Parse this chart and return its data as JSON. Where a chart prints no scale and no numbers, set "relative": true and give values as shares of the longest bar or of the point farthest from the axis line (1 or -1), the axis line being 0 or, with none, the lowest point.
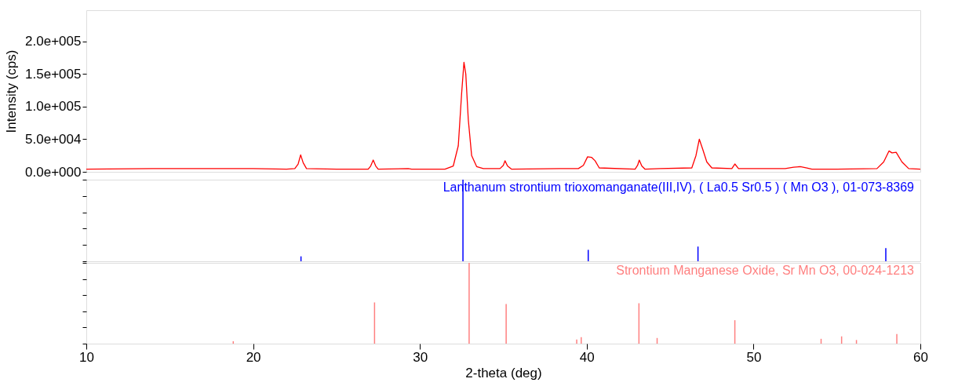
{
  "chart_data": [
    {
      "type": "line",
      "ylabel": "Intensity (cps)",
      "xlim": [
        10,
        60
      ],
      "ylim": [
        0,
        248000
      ],
      "tick_labels": "y",
      "yticks": [
        {
          "value": 0,
          "label": "0.0e+000"
        },
        {
          "value": 50000,
          "label": "5.0e+004"
        },
        {
          "value": 100000,
          "label": "1.0e+005"
        },
        {
          "value": 150000,
          "label": "1.5e+005"
        },
        {
          "value": 200000,
          "label": "2.0e+005"
        }
      ],
      "series": [
        {
          "color": "#ff0000",
          "x": [
            10,
            14,
            18,
            20,
            22,
            22.5,
            22.7,
            22.85,
            23.0,
            23.2,
            25,
            26.9,
            27.05,
            27.2,
            27.35,
            27.5,
            29.3,
            29.5,
            31.5,
            32.0,
            32.3,
            32.5,
            32.64,
            32.75,
            32.9,
            33.1,
            33.4,
            33.8,
            34.8,
            35.0,
            35.1,
            35.25,
            35.5,
            38.4,
            39.5,
            39.8,
            40.05,
            40.3,
            40.5,
            40.75,
            42.9,
            43.05,
            43.15,
            43.3,
            43.5,
            44.4,
            46.3,
            46.55,
            46.75,
            46.95,
            47.2,
            47.5,
            48.7,
            48.88,
            49.1,
            51.9,
            52.4,
            52.8,
            53.2,
            53.5,
            55,
            57.4,
            57.8,
            58.12,
            58.3,
            58.55,
            58.9,
            59.3,
            60
          ],
          "values": [
            4000,
            5000,
            5000,
            5000,
            4000,
            5000,
            12000,
            26000,
            14000,
            5000,
            4000,
            4000,
            9000,
            18000,
            9000,
            4000,
            5000,
            4000,
            4000,
            9000,
            40000,
            120000,
            168000,
            150000,
            80000,
            25000,
            8000,
            5000,
            5000,
            10000,
            17000,
            9000,
            4000,
            5000,
            5000,
            10000,
            23000,
            22000,
            17000,
            6000,
            4000,
            10000,
            18000,
            9000,
            4000,
            5000,
            6000,
            25000,
            50000,
            35000,
            15000,
            6000,
            5000,
            12000,
            5000,
            5000,
            7000,
            8000,
            6000,
            4000,
            4000,
            5000,
            15000,
            32000,
            29000,
            30000,
            15000,
            5000,
            4000
          ]
        }
      ]
    },
    {
      "type": "bar",
      "relative": true,
      "xlim": [
        10,
        60
      ],
      "tick_labels": false,
      "x": [
        22.87,
        32.58,
        40.09,
        46.67,
        57.93
      ],
      "series": [
        {
          "name": "Lanthanum strontium trioxomanganate(III,IV), ( La0.5 Sr0.5 ) ( Mn O3 ), 01-073-8369",
          "color": "#0000ff",
          "values": [
            0.06,
            1.0,
            0.14,
            0.18,
            0.16
          ]
        }
      ]
    },
    {
      "type": "bar",
      "relative": true,
      "xlim": [
        10,
        60
      ],
      "xticks": [
        10,
        20,
        30,
        40,
        50,
        60
      ],
      "xlabel": "2-theta (deg)",
      "tick_labels": "x",
      "x": [
        18.81,
        27.28,
        32.95,
        35.17,
        39.4,
        39.67,
        43.13,
        44.22,
        48.88,
        54.05,
        55.28,
        56.17,
        58.59
      ],
      "series": [
        {
          "name": "Strontium Manganese Oxide, Sr Mn O3, 00-024-1213",
          "color": "#ff8080",
          "values": [
            0.03,
            0.51,
            1.0,
            0.49,
            0.05,
            0.08,
            0.5,
            0.07,
            0.29,
            0.06,
            0.09,
            0.045,
            0.12
          ]
        }
      ]
    }
  ]
}
